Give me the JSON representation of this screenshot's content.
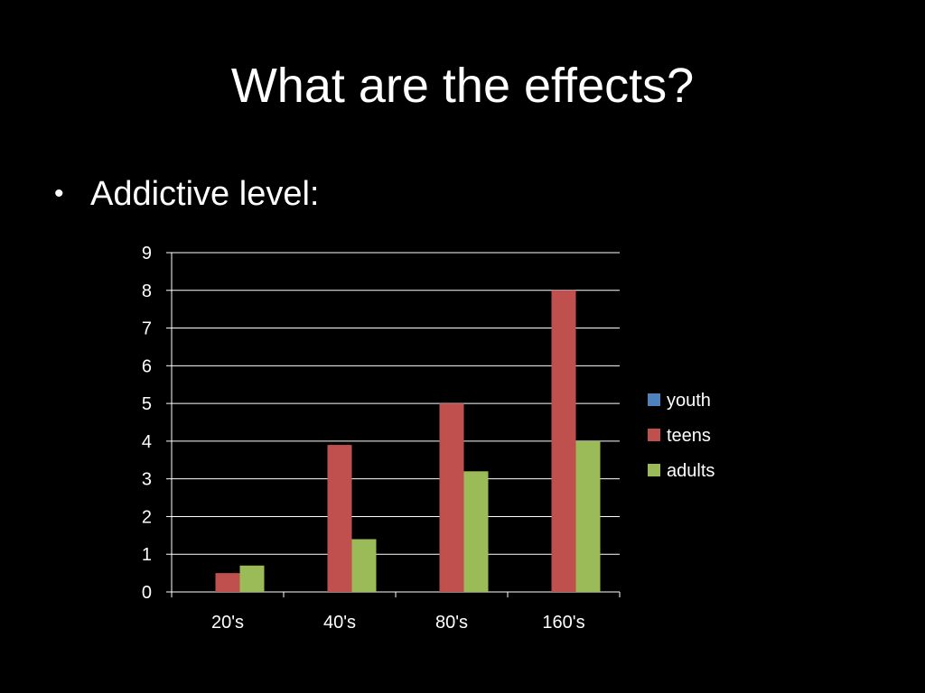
{
  "slide": {
    "title": "What are the effects?",
    "bullet": "Addictive level:"
  },
  "colors": {
    "background": "#000000",
    "text": "#ffffff",
    "gridline": "#ffffff",
    "axis": "#ffffff"
  },
  "chart_data": {
    "type": "bar",
    "title": "",
    "xlabel": "",
    "ylabel": "",
    "categories": [
      "20's",
      "40's",
      "80's",
      "160's"
    ],
    "ylim": [
      0,
      9
    ],
    "yticks": [
      0,
      1,
      2,
      3,
      4,
      5,
      6,
      7,
      8,
      9
    ],
    "grid": true,
    "legend": "right",
    "series": [
      {
        "name": "youth",
        "color": "#4f81bd",
        "values": [
          0,
          0,
          0,
          0
        ]
      },
      {
        "name": "teens",
        "color": "#c0504d",
        "values": [
          0.5,
          3.9,
          5,
          8
        ]
      },
      {
        "name": "adults",
        "color": "#9bbb59",
        "values": [
          0.7,
          1.4,
          3.2,
          4
        ]
      }
    ]
  }
}
